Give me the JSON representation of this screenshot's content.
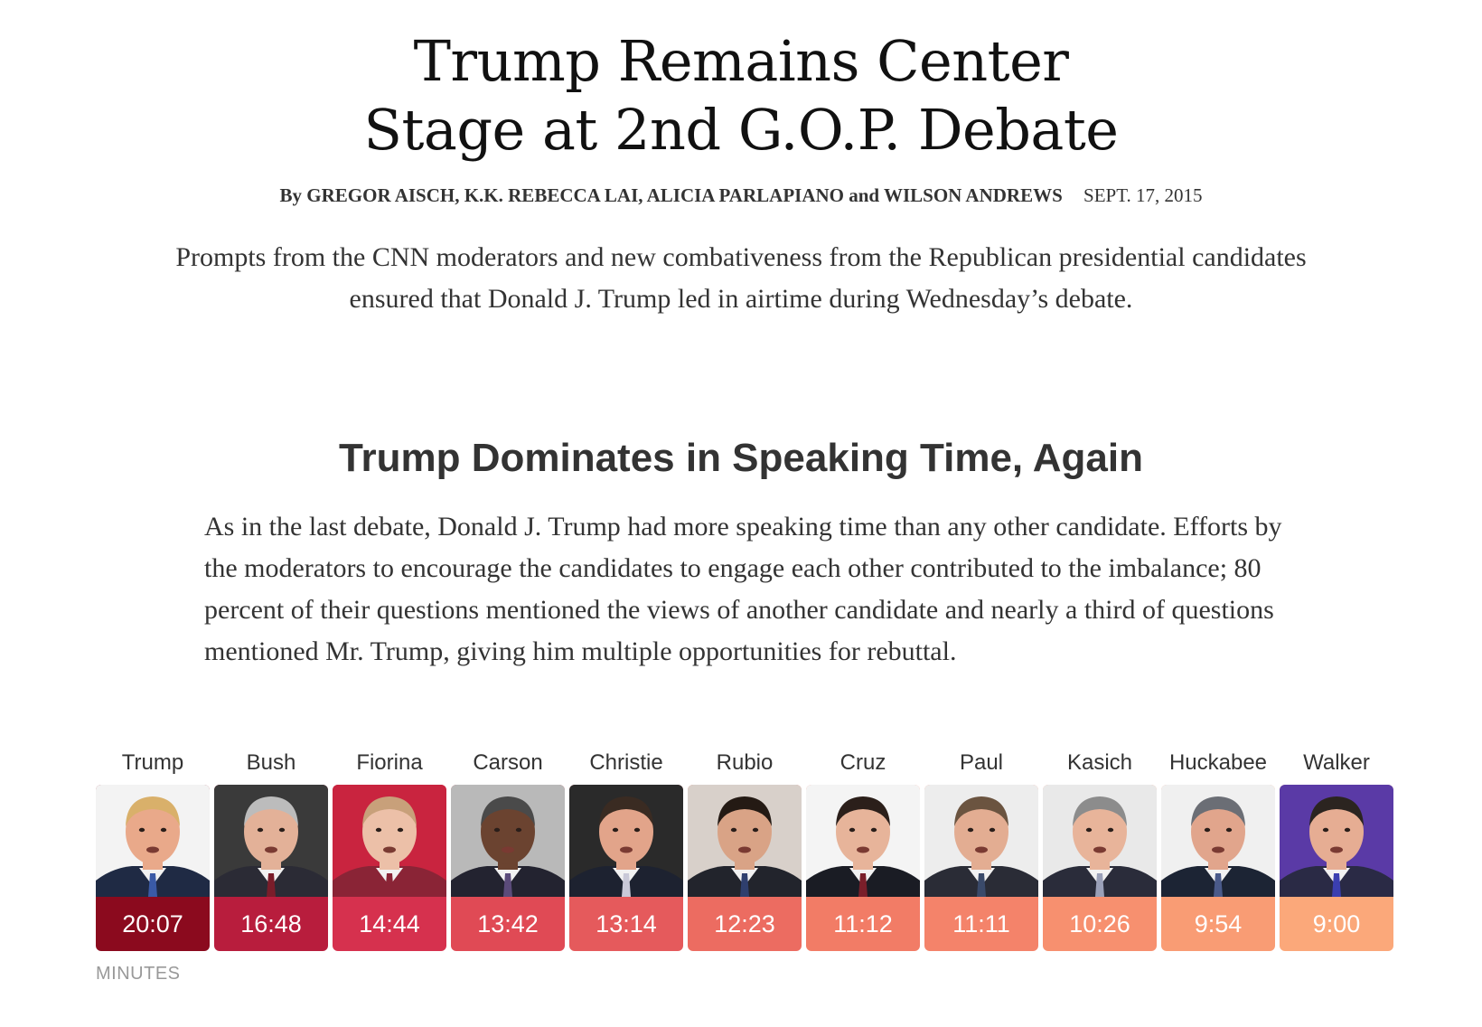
{
  "article": {
    "headline_line1": "Trump Remains Center",
    "headline_line2": "Stage at 2nd G.O.P. Debate",
    "byline": "By GREGOR AISCH, K.K. REBECCA LAI, ALICIA PARLAPIANO and WILSON ANDREWS",
    "date": "SEPT. 17, 2015",
    "summary": "Prompts from the CNN moderators and new combativeness from the Republican presidential candidates ensured that Donald J. Trump led in airtime during Wednesday’s debate."
  },
  "section": {
    "title": "Trump Dominates in Speaking Time, Again",
    "body": "As in the last debate, Donald J. Trump had more speaking time than any other candidate. Efforts by the moderators to encourage the candidates to engage each other contributed to the imbalance; 80 percent of their questions mentioned the views of another candidate and nearly a third of questions mentioned Mr. Trump, giving him multiple opportunities for rebuttal."
  },
  "chart_data": {
    "type": "bar",
    "title": "Trump Dominates in Speaking Time, Again",
    "units_label": "MINUTES",
    "candidates": [
      {
        "name": "Trump",
        "time": "20:07",
        "minutes": 20.12,
        "color": "#8b0a1e",
        "suit": "#1f2a44",
        "tie": "#3a5aa6",
        "hair": "#d9b06a",
        "skin": "#e9a98a",
        "photo": "#f3f3f3"
      },
      {
        "name": "Bush",
        "time": "16:48",
        "minutes": 16.8,
        "color": "#b81d3d",
        "suit": "#2b2b35",
        "tie": "#7a1d2a",
        "hair": "#bcbcbc",
        "skin": "#e3b198",
        "photo": "#3a3a3a"
      },
      {
        "name": "Fiorina",
        "time": "14:44",
        "minutes": 14.73,
        "color": "#d6314e",
        "suit": "#8a2436",
        "tie": "#8a2436",
        "hair": "#c8a07a",
        "skin": "#ecc0a8",
        "photo": "#c9243f"
      },
      {
        "name": "Carson",
        "time": "13:42",
        "minutes": 13.7,
        "color": "#e04a55",
        "suit": "#232330",
        "tie": "#5b4b7a",
        "hair": "#4a4a4a",
        "skin": "#6b4330",
        "photo": "#b9b9b9"
      },
      {
        "name": "Christie",
        "time": "13:14",
        "minutes": 13.23,
        "color": "#e55a5c",
        "suit": "#1d2230",
        "tie": "#c9c9d8",
        "hair": "#3a2b22",
        "skin": "#e2a48a",
        "photo": "#2a2a2a"
      },
      {
        "name": "Rubio",
        "time": "12:23",
        "minutes": 12.38,
        "color": "#ec6c61",
        "suit": "#22242c",
        "tie": "#2f3f6e",
        "hair": "#241a14",
        "skin": "#d9a386",
        "photo": "#d8d0ca"
      },
      {
        "name": "Cruz",
        "time": "11:12",
        "minutes": 11.2,
        "color": "#f27c66",
        "suit": "#1a1c24",
        "tie": "#7a1f2a",
        "hair": "#2b1f1a",
        "skin": "#e7b49a",
        "photo": "#f4f4f4"
      },
      {
        "name": "Paul",
        "time": "11:11",
        "minutes": 11.18,
        "color": "#f4836a",
        "suit": "#2a2c36",
        "tie": "#3a4a6a",
        "hair": "#6b5440",
        "skin": "#e3ad92",
        "photo": "#ededed"
      },
      {
        "name": "Kasich",
        "time": "10:26",
        "minutes": 10.43,
        "color": "#f7906f",
        "suit": "#2a2c3a",
        "tie": "#9aa0b8",
        "hair": "#8c8c8c",
        "skin": "#e8b49a",
        "photo": "#e9e9e9"
      },
      {
        "name": "Huckabee",
        "time": "9:54",
        "minutes": 9.9,
        "color": "#f99c74",
        "suit": "#1c2434",
        "tie": "#4a5a8a",
        "hair": "#6b6e75",
        "skin": "#e1a58c",
        "photo": "#f0f0f0"
      },
      {
        "name": "Walker",
        "time": "9:00",
        "minutes": 9.0,
        "color": "#fba87a",
        "suit": "#2a2a45",
        "tie": "#3b3fb0",
        "hair": "#2b2420",
        "skin": "#e6ad93",
        "photo": "#5a3aa6"
      }
    ]
  }
}
